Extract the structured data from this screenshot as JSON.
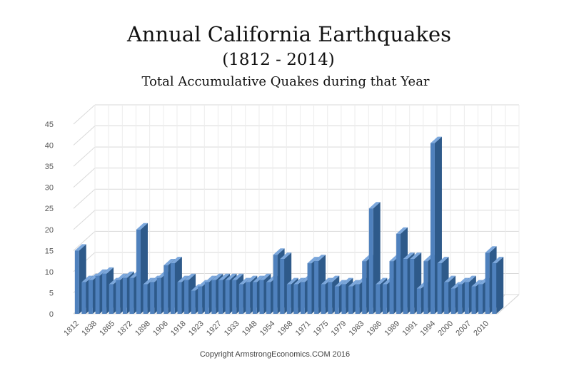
{
  "chart_data": {
    "type": "bar",
    "title": "Annual California Earthquakes",
    "subtitle": "(1812 - 2014)",
    "subtitle2": "Total Accumulative Quakes during that Year",
    "copyright": "Copyright ArmstrongEconomics.COM 2016",
    "ylim": [
      0,
      45
    ],
    "yticks": [
      0,
      5,
      10,
      15,
      20,
      25,
      30,
      35,
      40,
      45
    ],
    "grid": true,
    "bar_color": "#4f81bd",
    "x_tick_labels": [
      "1812",
      "1838",
      "1865",
      "1872",
      "1898",
      "1906",
      "1918",
      "1923",
      "1927",
      "1933",
      "1948",
      "1954",
      "1968",
      "1971",
      "1975",
      "1979",
      "1983",
      "1986",
      "1989",
      "1991",
      "1994",
      "2000",
      "2007",
      "2010"
    ],
    "values": [
      15,
      7.5,
      8,
      9,
      9.5,
      7,
      8,
      8.5,
      8.5,
      20,
      7,
      7.5,
      8.5,
      11.5,
      12,
      7.5,
      8,
      5.5,
      6.5,
      7.5,
      8,
      8,
      8,
      8,
      7,
      7.5,
      7.5,
      8,
      7.5,
      14,
      13,
      7,
      7,
      7.5,
      12,
      12.5,
      7,
      7.5,
      6.5,
      7,
      6.5,
      7,
      12.5,
      25,
      7,
      7,
      12.5,
      19,
      13,
      13,
      6,
      12.5,
      40.5,
      12,
      7.5,
      6,
      7,
      7.5,
      6.5,
      7,
      14.5,
      12
    ]
  }
}
